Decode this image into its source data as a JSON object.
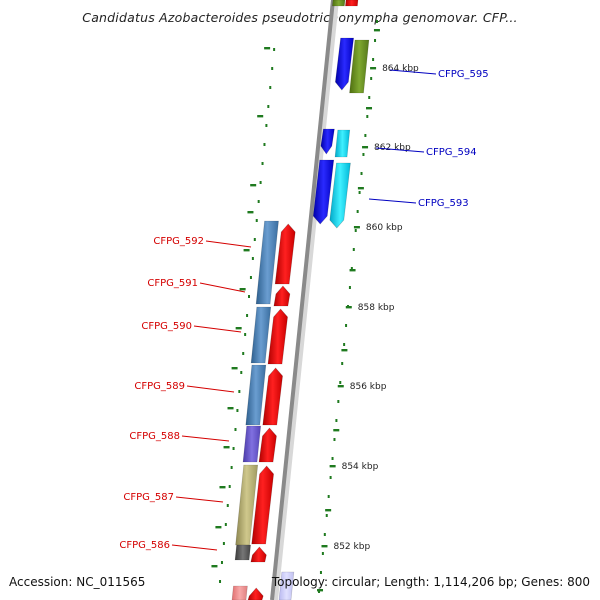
{
  "title": "Candidatus Azobacteroides pseudotrichonympha genomovar. CFP...",
  "footer": {
    "accession": "Accession: NC_011565",
    "topology": "Topology: circular; Length: 1,114,206 bp; Genes: 800"
  },
  "colors": {
    "backbone": "#8a8a8a",
    "ticks": "#1f7a1f",
    "forward_labels": "#0000c0",
    "reverse_labels": "#d40000"
  },
  "scale_ticks": [
    {
      "label": "864 kbp"
    },
    {
      "label": "862 kbp"
    },
    {
      "label": "860 kbp"
    },
    {
      "label": "858 kbp"
    },
    {
      "label": "856 kbp"
    },
    {
      "label": "854 kbp"
    },
    {
      "label": "852 kbp"
    }
  ],
  "genes_right": [
    {
      "id": "CFPG_595",
      "label": "CFPG_595"
    },
    {
      "id": "CFPG_594",
      "label": "CFPG_594"
    },
    {
      "id": "CFPG_593",
      "label": "CFPG_593"
    }
  ],
  "genes_left": [
    {
      "id": "CFPG_592",
      "label": "CFPG_592"
    },
    {
      "id": "CFPG_591",
      "label": "CFPG_591"
    },
    {
      "id": "CFPG_590",
      "label": "CFPG_590"
    },
    {
      "id": "CFPG_589",
      "label": "CFPG_589"
    },
    {
      "id": "CFPG_588",
      "label": "CFPG_588"
    },
    {
      "id": "CFPG_587",
      "label": "CFPG_587"
    },
    {
      "id": "CFPG_586",
      "label": "CFPG_586"
    }
  ]
}
